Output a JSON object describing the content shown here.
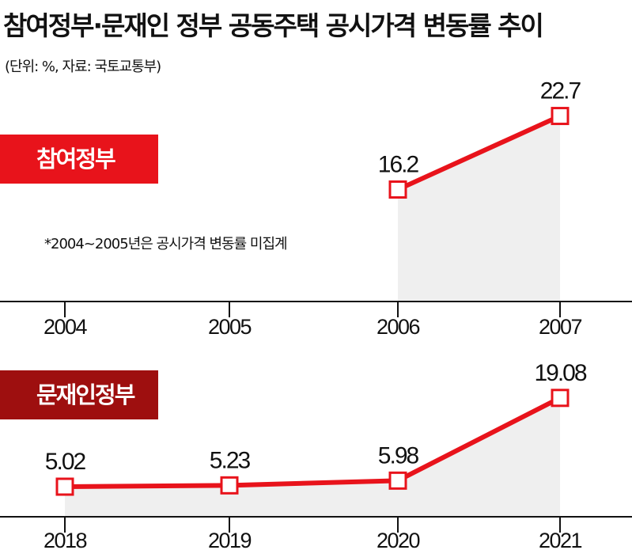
{
  "title": "참여정부·문재인 정부 공동주택 공시가격 변동률 추이",
  "unit": "(단위: %, 자료: 국토교통부)",
  "footnote": "*2004~2005년은 공시가격 변동률 미집계",
  "colors": {
    "line": "#e8131b",
    "badge1": "#e8131b",
    "badge2": "#9e0f0f",
    "area": "#efefef"
  },
  "chart_data": [
    {
      "type": "line",
      "name": "참여정부",
      "categories": [
        "2004",
        "2005",
        "2006",
        "2007"
      ],
      "values": [
        null,
        null,
        16.2,
        22.7
      ],
      "labels": [
        "",
        "",
        "16.2",
        "22.7"
      ]
    },
    {
      "type": "line",
      "name": "문재인정부",
      "categories": [
        "2018",
        "2019",
        "2020",
        "2021"
      ],
      "values": [
        5.02,
        5.23,
        5.98,
        19.08
      ],
      "labels": [
        "5.02",
        "5.23",
        "5.98",
        "19.08"
      ]
    }
  ]
}
